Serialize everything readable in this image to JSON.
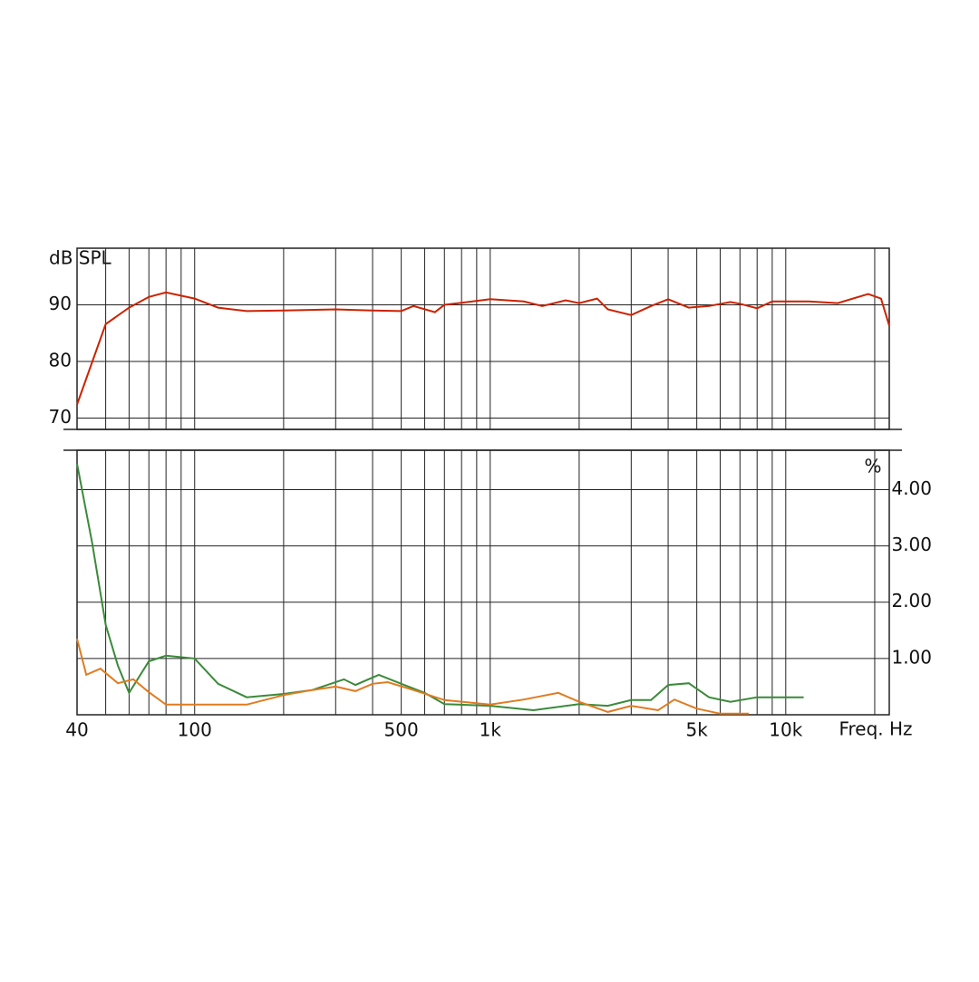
{
  "chart_data": [
    {
      "type": "line",
      "ylabel": "dB SPL",
      "xscale": "log",
      "xlim": [
        40,
        22400
      ],
      "ylim": [
        68,
        100
      ],
      "yticks": [
        70,
        80,
        90
      ],
      "x_gridlines": [
        50,
        60,
        70,
        80,
        90,
        100,
        200,
        300,
        400,
        500,
        600,
        700,
        800,
        900,
        1000,
        2000,
        3000,
        4000,
        5000,
        6000,
        7000,
        8000,
        9000,
        10000,
        20000
      ],
      "grid": true,
      "series": [
        {
          "color": "#cc2200",
          "x": [
            40,
            50,
            60,
            70,
            80,
            100,
            120,
            150,
            200,
            300,
            400,
            500,
            550,
            650,
            700,
            1000,
            1300,
            1500,
            1800,
            2000,
            2300,
            2500,
            3000,
            3500,
            4000,
            4700,
            5500,
            6500,
            7000,
            8000,
            9000,
            12000,
            15000,
            19000,
            21000,
            22400
          ],
          "values": [
            72.4,
            86.6,
            89.5,
            91.4,
            92.2,
            91.1,
            89.5,
            88.9,
            89.0,
            89.2,
            89.0,
            88.9,
            89.8,
            88.7,
            90.0,
            91.0,
            90.6,
            89.8,
            90.8,
            90.3,
            91.1,
            89.2,
            88.2,
            89.8,
            91.0,
            89.5,
            89.8,
            90.5,
            90.2,
            89.4,
            90.6,
            90.6,
            90.3,
            91.9,
            91.1,
            86.3
          ]
        }
      ]
    },
    {
      "type": "line",
      "ylabel": "%",
      "xlabel": "Freq. Hz",
      "xscale": "log",
      "xlim": [
        40,
        22400
      ],
      "ylim": [
        0,
        4.7
      ],
      "yticks": [
        {
          "value": 1,
          "label": "1.00"
        },
        {
          "value": 2,
          "label": "2.00"
        },
        {
          "value": 3,
          "label": "3.00"
        },
        {
          "value": 4,
          "label": "4.00"
        }
      ],
      "xticks": [
        40,
        100,
        500,
        {
          "value": 1000,
          "label": "1k"
        },
        {
          "value": 5000,
          "label": "5k"
        },
        {
          "value": 10000,
          "label": "10k"
        }
      ],
      "x_gridlines": [
        50,
        60,
        70,
        80,
        90,
        100,
        200,
        300,
        400,
        500,
        600,
        700,
        800,
        900,
        1000,
        2000,
        3000,
        4000,
        5000,
        6000,
        7000,
        8000,
        9000,
        10000,
        20000
      ],
      "grid": true,
      "series": [
        {
          "color": "#3a8a3a",
          "x": [
            40,
            45,
            50,
            55,
            60,
            70,
            80,
            100,
            120,
            150,
            200,
            250,
            320,
            350,
            420,
            500,
            600,
            700,
            1000,
            1400,
            2000,
            2500,
            3000,
            3500,
            4000,
            4700,
            5500,
            6500,
            8000,
            10000,
            11500
          ],
          "values": [
            4.46,
            3.05,
            1.6,
            0.87,
            0.39,
            0.95,
            1.05,
            1.0,
            0.55,
            0.31,
            0.37,
            0.44,
            0.63,
            0.53,
            0.71,
            0.55,
            0.39,
            0.19,
            0.16,
            0.08,
            0.19,
            0.16,
            0.26,
            0.26,
            0.53,
            0.56,
            0.31,
            0.23,
            0.31,
            0.31,
            0.31
          ]
        },
        {
          "color": "#e07b20",
          "x": [
            40,
            43,
            48,
            55,
            62,
            70,
            80,
            100,
            150,
            200,
            250,
            300,
            350,
            400,
            450,
            550,
            700,
            1000,
            1300,
            1700,
            2000,
            2500,
            3000,
            3700,
            4200,
            5000,
            6000,
            7500
          ],
          "values": [
            1.35,
            0.71,
            0.82,
            0.56,
            0.63,
            0.4,
            0.18,
            0.18,
            0.18,
            0.35,
            0.44,
            0.5,
            0.42,
            0.55,
            0.58,
            0.44,
            0.26,
            0.18,
            0.27,
            0.39,
            0.23,
            0.05,
            0.16,
            0.08,
            0.27,
            0.11,
            0.02,
            0.02
          ]
        }
      ]
    }
  ]
}
